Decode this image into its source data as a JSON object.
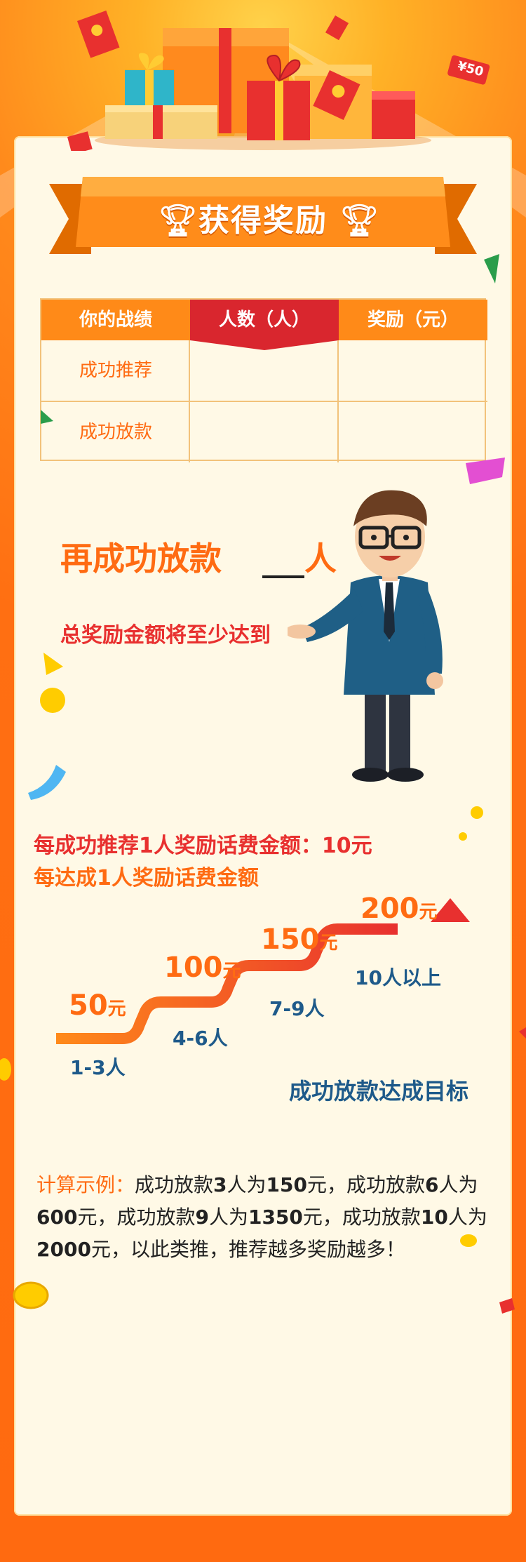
{
  "header": {
    "title": "获得奖励"
  },
  "table": {
    "headers": [
      "你的战绩",
      "人数（人）",
      "奖励（元）"
    ],
    "rows": [
      "成功推荐",
      "成功放款"
    ]
  },
  "promo": {
    "line_a": "再成功放款",
    "line_a_unit": "人",
    "line_b": "总奖励金额将至少达到"
  },
  "rules": {
    "referral_line": "每成功推荐1人奖励话费金额：10元",
    "tier_line": "每达成1人奖励话费金额"
  },
  "tiers": [
    {
      "amount": "50",
      "unit": "元",
      "range": "1-3人"
    },
    {
      "amount": "100",
      "unit": "元",
      "range": "4-6人"
    },
    {
      "amount": "150",
      "unit": "元",
      "range": "7-9人"
    },
    {
      "amount": "200",
      "unit": "元",
      "range": "10人以上"
    }
  ],
  "goal_label": "成功放款达成目标",
  "example": {
    "label": "计算示例：",
    "p1": "成功放款",
    "n1": "3",
    "p2": "人为",
    "a1": "150",
    "p3": "元，成功放款",
    "n2": "6",
    "p4": "人为",
    "a2": "600",
    "p5": "元，成功放款",
    "n3": "9",
    "p6": "人为",
    "a3": "1350",
    "p7": "元，成功放款",
    "n4": "10",
    "p8": "人为",
    "a4": "2000",
    "p9": "元，以此类推，推荐越多奖励越多！"
  },
  "decor": {
    "envelope_badge": "¥50"
  },
  "colors": {
    "accent": "#ff6b12",
    "red": "#e8302f",
    "blue": "#1e5a8a",
    "card": "#fff9e6"
  }
}
